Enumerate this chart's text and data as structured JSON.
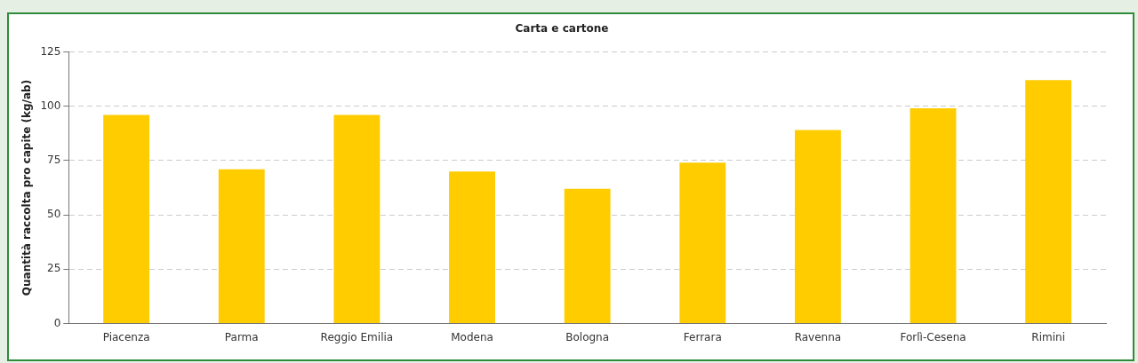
{
  "chart_data": {
    "type": "bar",
    "title": "Carta e cartone",
    "ylabel": "Quantità raccolta pro capite (kg/ab)",
    "categories": [
      "Piacenza",
      "Parma",
      "Reggio Emilia",
      "Modena",
      "Bologna",
      "Ferrara",
      "Ravenna",
      "Forlì-Cesena",
      "Rimini"
    ],
    "values": [
      96,
      71,
      96,
      70,
      62,
      74,
      89,
      99,
      112
    ],
    "color": "#ffcc00",
    "ylim": [
      0,
      125
    ],
    "yticks": [
      0,
      25,
      50,
      75,
      100,
      125
    ],
    "grid": "y",
    "legend": false
  }
}
